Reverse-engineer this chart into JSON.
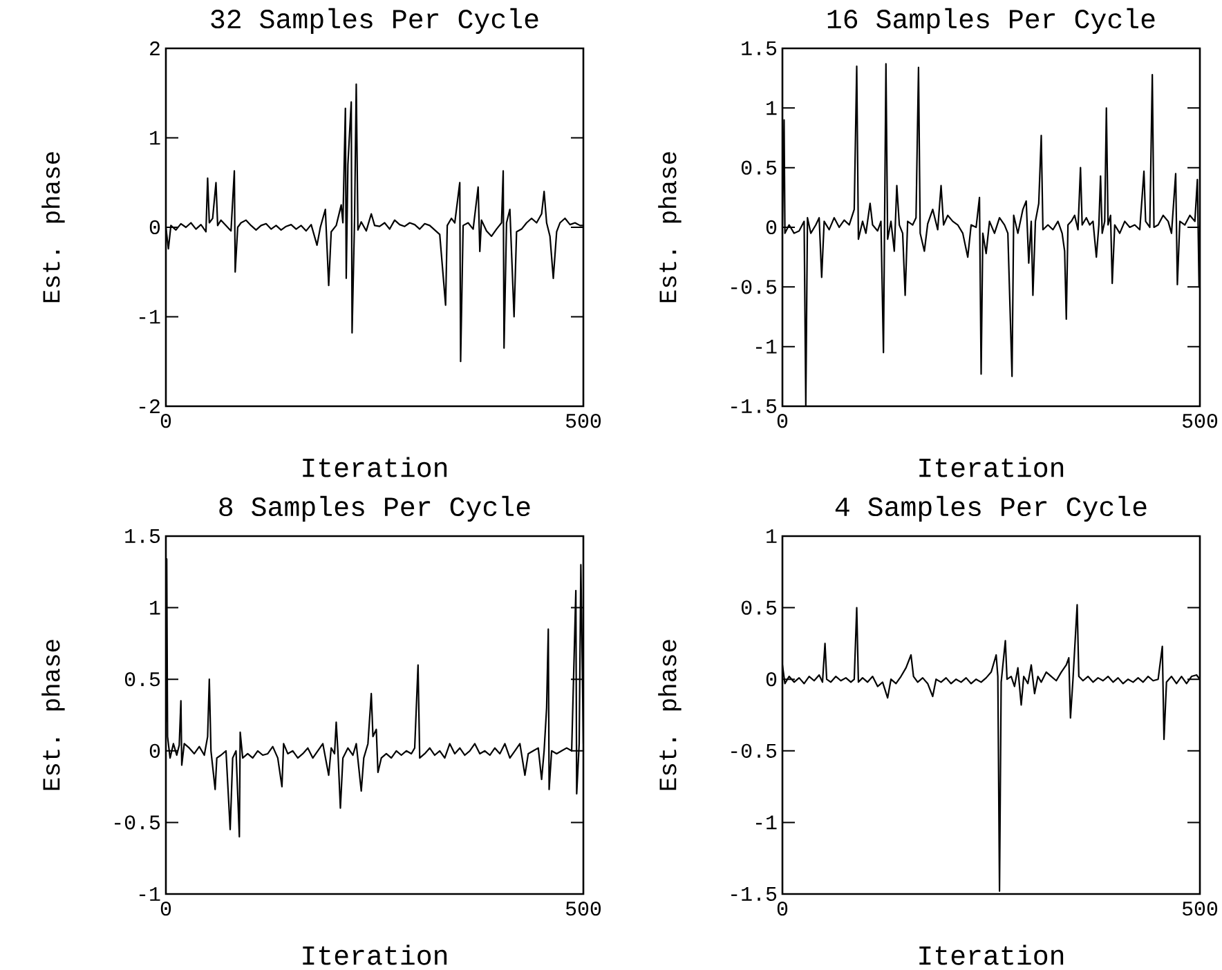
{
  "chart_data": [
    {
      "type": "line",
      "title": "32 Samples Per Cycle",
      "xlabel": "Iteration",
      "ylabel": "Est. phase",
      "color": "#000000",
      "xlim": [
        0,
        500
      ],
      "xticks": [
        0,
        500
      ],
      "ylim": [
        -2,
        2
      ],
      "yticks": [
        -2,
        -1,
        0,
        1,
        2
      ],
      "x": [
        0,
        3,
        6,
        12,
        18,
        24,
        30,
        36,
        42,
        48,
        50,
        52,
        56,
        60,
        62,
        66,
        72,
        78,
        82,
        83,
        86,
        90,
        96,
        102,
        108,
        114,
        120,
        126,
        132,
        138,
        144,
        150,
        156,
        162,
        168,
        174,
        181,
        185,
        191,
        195,
        198,
        204,
        210,
        212,
        215,
        216,
        218,
        222,
        223,
        226,
        228,
        230,
        234,
        240,
        246,
        250,
        256,
        262,
        268,
        274,
        280,
        286,
        292,
        298,
        304,
        310,
        316,
        322,
        328,
        335,
        337,
        342,
        346,
        352,
        353,
        356,
        362,
        368,
        374,
        376,
        378,
        384,
        390,
        396,
        402,
        404,
        405,
        408,
        412,
        417,
        420,
        426,
        432,
        438,
        444,
        450,
        453,
        456,
        460,
        464,
        468,
        472,
        478,
        484,
        490,
        496,
        500
      ],
      "values": [
        0,
        -0.24,
        0.02,
        -0.03,
        0.04,
        0,
        0.05,
        -0.02,
        0.03,
        -0.05,
        0.55,
        0.05,
        0.1,
        0.5,
        0.02,
        0.08,
        0.02,
        -0.04,
        0.63,
        -0.5,
        0,
        0.05,
        0.08,
        0.02,
        -0.03,
        0.02,
        0.04,
        -0.02,
        0.02,
        -0.03,
        0.01,
        0.03,
        -0.02,
        0.02,
        -0.04,
        0.03,
        -0.2,
        0,
        0.2,
        -0.65,
        -0.05,
        0.02,
        0.25,
        0.05,
        1.33,
        -0.57,
        0.7,
        1.4,
        -1.18,
        0.1,
        1.6,
        -0.03,
        0.06,
        -0.04,
        0.15,
        0.02,
        0.01,
        0.05,
        -0.02,
        0.08,
        0.03,
        0.01,
        0.05,
        0.03,
        -0.02,
        0.04,
        0.02,
        -0.03,
        -0.08,
        -0.87,
        0.02,
        0.1,
        0.05,
        0.5,
        -1.5,
        0.02,
        0.05,
        -0.02,
        0.45,
        -0.27,
        0.08,
        -0.04,
        -0.1,
        -0.02,
        0.05,
        0.63,
        -1.35,
        0.05,
        0.2,
        -1.0,
        -0.05,
        -0.02,
        0.05,
        0.1,
        0.05,
        0.15,
        0.4,
        0.05,
        -0.1,
        -0.57,
        -0.05,
        0.05,
        0.1,
        0.03,
        0.05,
        0.02,
        0.02
      ]
    },
    {
      "type": "line",
      "title": "16 Samples Per Cycle",
      "xlabel": "Iteration",
      "ylabel": "Est. phase",
      "color": "#000000",
      "xlim": [
        0,
        500
      ],
      "xticks": [
        0,
        500
      ],
      "ylim": [
        -1.5,
        1.5
      ],
      "yticks": [
        -1.5,
        -1,
        -0.5,
        0,
        0.5,
        1,
        1.5
      ],
      "x": [
        0,
        2,
        3,
        8,
        14,
        20,
        26,
        28,
        30,
        34,
        40,
        44,
        47,
        50,
        56,
        62,
        68,
        74,
        80,
        86,
        89,
        91,
        96,
        100,
        105,
        108,
        114,
        118,
        121,
        124,
        126,
        130,
        134,
        137,
        140,
        144,
        147,
        150,
        156,
        160,
        163,
        165,
        170,
        174,
        180,
        186,
        190,
        193,
        198,
        204,
        210,
        216,
        222,
        226,
        232,
        236,
        238,
        240,
        244,
        248,
        254,
        260,
        266,
        270,
        275,
        277,
        282,
        288,
        292,
        295,
        298,
        300,
        303,
        307,
        310,
        312,
        318,
        324,
        330,
        335,
        338,
        340,
        342,
        346,
        350,
        354,
        357,
        359,
        364,
        368,
        372,
        376,
        379,
        381,
        383,
        386,
        388,
        390,
        393,
        395,
        398,
        404,
        410,
        416,
        422,
        428,
        433,
        435,
        440,
        443,
        445,
        450,
        456,
        462,
        466,
        471,
        473,
        476,
        482,
        488,
        494,
        497,
        499,
        500
      ],
      "values": [
        0,
        0.9,
        -0.05,
        0.02,
        -0.05,
        -0.03,
        0.05,
        -1.5,
        0.08,
        -0.05,
        0.02,
        0.08,
        -0.42,
        0.05,
        -0.02,
        0.08,
        0,
        0.06,
        0.02,
        0.15,
        1.35,
        -0.1,
        0.05,
        -0.05,
        0.2,
        0.02,
        -0.03,
        0.05,
        -1.05,
        1.37,
        -0.1,
        0.05,
        -0.2,
        0.35,
        0.02,
        -0.05,
        -0.57,
        0.05,
        0.02,
        0.08,
        1.34,
        -0.05,
        -0.2,
        0.03,
        0.15,
        -0.02,
        0.35,
        0.02,
        0.1,
        0.05,
        0.02,
        -0.05,
        -0.25,
        0.02,
        0,
        0.25,
        -1.23,
        -0.05,
        -0.22,
        0.05,
        -0.05,
        0.08,
        0.02,
        -0.05,
        -1.25,
        0.1,
        -0.05,
        0.15,
        0.22,
        -0.3,
        0.05,
        -0.57,
        0.05,
        0.2,
        0.77,
        -0.02,
        0.02,
        -0.02,
        0.05,
        -0.05,
        -0.2,
        -0.77,
        0.02,
        0.05,
        0.1,
        -0.02,
        0.5,
        0.02,
        0.08,
        0.02,
        0.05,
        -0.25,
        0.02,
        0.43,
        -0.05,
        0.05,
        1.0,
        0.02,
        0.1,
        -0.47,
        0.02,
        -0.05,
        0.05,
        0,
        0.02,
        -0.02,
        0.47,
        0.05,
        0,
        1.28,
        0,
        0.02,
        0.1,
        0.05,
        -0.05,
        0.45,
        -0.48,
        0.05,
        0.02,
        0.1,
        0.05,
        0.4,
        -0.5,
        0.02
      ]
    },
    {
      "type": "line",
      "title": "8 Samples Per Cycle",
      "xlabel": "Iteration",
      "ylabel": "Est. phase",
      "color": "#000000",
      "xlim": [
        0,
        500
      ],
      "xticks": [
        0,
        500
      ],
      "ylim": [
        -1,
        1.5
      ],
      "yticks": [
        -1,
        -0.5,
        0,
        0.5,
        1,
        1.5
      ],
      "x": [
        0,
        1,
        2,
        5,
        9,
        13,
        16,
        18,
        19,
        22,
        28,
        34,
        40,
        46,
        50,
        52,
        54,
        59,
        61,
        66,
        72,
        77,
        80,
        84,
        88,
        89,
        92,
        98,
        104,
        110,
        116,
        122,
        128,
        134,
        139,
        141,
        146,
        152,
        158,
        164,
        170,
        176,
        182,
        188,
        195,
        198,
        202,
        204,
        206,
        209,
        212,
        218,
        224,
        228,
        234,
        237,
        242,
        246,
        248,
        252,
        254,
        258,
        264,
        270,
        276,
        282,
        288,
        294,
        298,
        302,
        304,
        310,
        316,
        322,
        328,
        334,
        340,
        346,
        352,
        358,
        364,
        370,
        376,
        382,
        388,
        394,
        400,
        406,
        412,
        418,
        424,
        430,
        434,
        440,
        446,
        450,
        453,
        456,
        458,
        459,
        462,
        468,
        474,
        480,
        486,
        491,
        492,
        495,
        497,
        500
      ],
      "values": [
        0.2,
        1.34,
        0.1,
        -0.05,
        0.05,
        -0.03,
        0.04,
        0.35,
        -0.1,
        0.05,
        0.02,
        -0.02,
        0.03,
        -0.03,
        0.1,
        0.5,
        0,
        -0.27,
        -0.05,
        -0.03,
        0,
        -0.55,
        -0.05,
        0,
        -0.6,
        0.13,
        -0.05,
        -0.02,
        -0.05,
        0,
        -0.03,
        -0.02,
        0.03,
        -0.05,
        -0.25,
        0.05,
        -0.02,
        0,
        -0.05,
        -0.02,
        0.02,
        -0.05,
        0,
        0.05,
        -0.17,
        0.02,
        -0.02,
        0.2,
        0,
        -0.4,
        -0.05,
        0.02,
        -0.03,
        0.05,
        -0.28,
        -0.05,
        0.05,
        0.4,
        0.1,
        0.15,
        -0.15,
        -0.05,
        -0.02,
        -0.05,
        0,
        -0.03,
        0,
        -0.02,
        0.02,
        0.6,
        -0.05,
        -0.02,
        0.02,
        -0.03,
        0,
        -0.05,
        0.05,
        -0.02,
        0.02,
        -0.03,
        0,
        0.05,
        -0.02,
        0,
        -0.03,
        0.02,
        -0.02,
        0.05,
        -0.05,
        0,
        0.05,
        -0.17,
        -0.02,
        0,
        0.02,
        -0.2,
        0,
        0.3,
        0.85,
        -0.27,
        0,
        -0.02,
        0,
        0.02,
        0,
        1.12,
        -0.3,
        0.05,
        1.3,
        0.05
      ]
    },
    {
      "type": "line",
      "title": "4 Samples Per Cycle",
      "xlabel": "Iteration",
      "ylabel": "Est. phase",
      "color": "#000000",
      "xlim": [
        0,
        500
      ],
      "xticks": [
        0,
        500
      ],
      "ylim": [
        -1.5,
        1
      ],
      "yticks": [
        -1.5,
        -1,
        -0.5,
        0,
        0.5,
        1
      ],
      "x": [
        0,
        3,
        8,
        14,
        20,
        26,
        32,
        38,
        44,
        48,
        51,
        53,
        58,
        64,
        70,
        76,
        82,
        86,
        89,
        91,
        96,
        102,
        108,
        114,
        120,
        126,
        130,
        136,
        142,
        148,
        154,
        157,
        162,
        168,
        174,
        180,
        184,
        190,
        196,
        202,
        208,
        214,
        220,
        226,
        232,
        238,
        244,
        250,
        256,
        258,
        260,
        262,
        267,
        269,
        274,
        278,
        282,
        286,
        289,
        294,
        298,
        302,
        306,
        310,
        316,
        322,
        328,
        334,
        340,
        343,
        345,
        348,
        353,
        355,
        360,
        366,
        372,
        378,
        384,
        390,
        396,
        402,
        408,
        414,
        420,
        426,
        432,
        438,
        444,
        450,
        455,
        457,
        460,
        466,
        472,
        478,
        484,
        490,
        496,
        500
      ],
      "values": [
        0.1,
        -0.03,
        0.02,
        -0.02,
        0.01,
        -0.03,
        0.02,
        -0.01,
        0.03,
        -0.02,
        0.25,
        0,
        -0.02,
        0.02,
        -0.01,
        0.01,
        -0.02,
        0,
        0.5,
        -0.02,
        0.01,
        -0.02,
        0.02,
        -0.05,
        -0.02,
        -0.13,
        0,
        -0.03,
        0.02,
        0.08,
        0.17,
        0.02,
        -0.02,
        0.01,
        -0.03,
        -0.12,
        0,
        -0.02,
        0.01,
        -0.03,
        0,
        -0.02,
        0.01,
        -0.03,
        0,
        -0.02,
        0.01,
        0.05,
        0.17,
        0.02,
        -1.48,
        -0.02,
        0.27,
        0,
        0.02,
        -0.05,
        0.08,
        -0.18,
        0.02,
        -0.03,
        0.1,
        -0.1,
        0.02,
        -0.02,
        0.05,
        0.02,
        -0.01,
        0.05,
        0.1,
        0.15,
        -0.27,
        0,
        0.52,
        0.02,
        -0.01,
        0.02,
        -0.02,
        0.01,
        -0.01,
        0.02,
        -0.02,
        0.01,
        -0.03,
        0,
        -0.02,
        0.01,
        -0.02,
        0.02,
        -0.01,
        0,
        0.23,
        -0.42,
        -0.02,
        0.02,
        -0.03,
        0.02,
        -0.03,
        0.02,
        0.03,
        0
      ]
    }
  ]
}
